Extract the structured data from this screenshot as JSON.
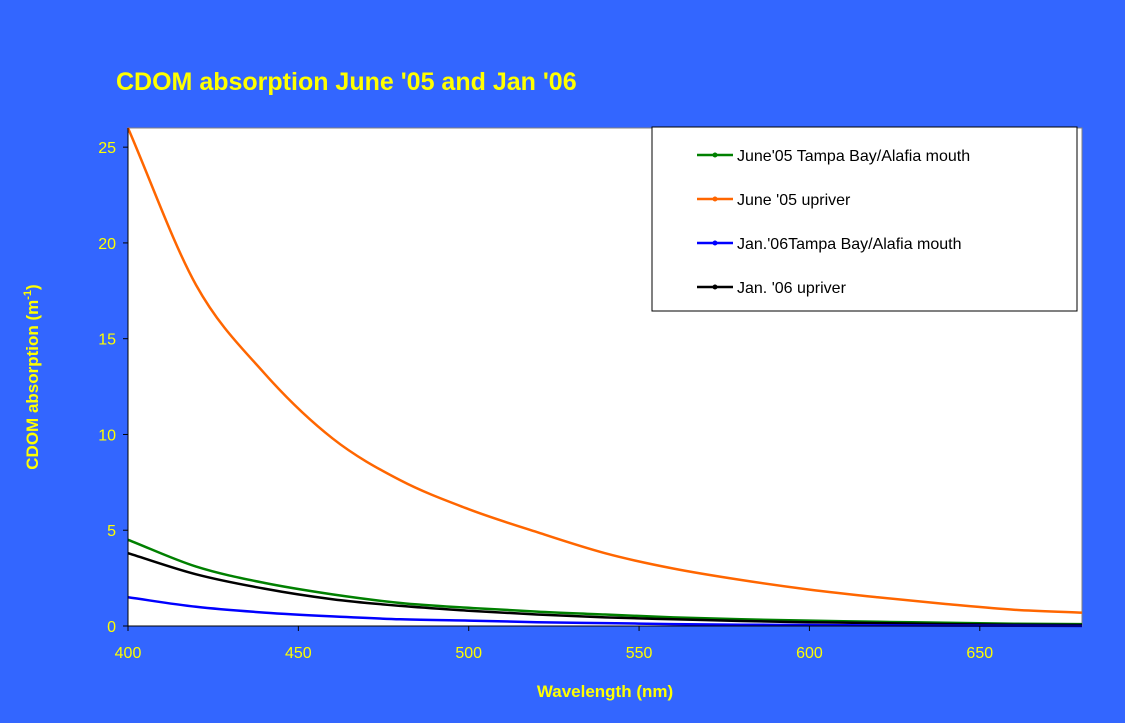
{
  "chart_data": {
    "type": "line",
    "title": "CDOM absorption June '05 and Jan '06",
    "xlabel": "Wavelength (nm)",
    "ylabel_main": "CDOM absorption (m",
    "ylabel_sup": "-1",
    "ylabel_tail": ")",
    "xlim": [
      400,
      680
    ],
    "ylim": [
      0,
      26
    ],
    "xticks": [
      400,
      450,
      500,
      550,
      600,
      650
    ],
    "yticks": [
      0,
      5,
      10,
      15,
      20,
      25
    ],
    "grid": false,
    "legend_position": "top-right",
    "x": [
      400,
      420,
      440,
      460,
      480,
      500,
      520,
      540,
      560,
      580,
      600,
      620,
      640,
      660,
      680
    ],
    "series": [
      {
        "name": "June'05 Tampa Bay/Alafia mouth",
        "color": "#008000",
        "values": [
          4.5,
          3.1,
          2.25,
          1.65,
          1.2,
          0.95,
          0.75,
          0.6,
          0.45,
          0.35,
          0.28,
          0.22,
          0.17,
          0.12,
          0.1
        ]
      },
      {
        "name": "June '05 upriver",
        "color": "#FF6600",
        "values": [
          26.0,
          17.8,
          13.2,
          9.8,
          7.6,
          6.1,
          4.9,
          3.8,
          3.0,
          2.4,
          1.9,
          1.5,
          1.15,
          0.85,
          0.7
        ]
      },
      {
        "name": "Jan.'06Tampa Bay/Alafia mouth",
        "color": "#0000FF",
        "values": [
          1.5,
          1.0,
          0.7,
          0.5,
          0.35,
          0.28,
          0.2,
          0.15,
          0.1,
          0.07,
          0.05,
          0.03,
          0.02,
          0.01,
          0.0
        ]
      },
      {
        "name": "Jan. '06 upriver",
        "color": "#000000",
        "values": [
          3.8,
          2.7,
          1.95,
          1.4,
          1.05,
          0.8,
          0.6,
          0.45,
          0.35,
          0.26,
          0.2,
          0.15,
          0.1,
          0.07,
          0.05
        ]
      }
    ]
  }
}
